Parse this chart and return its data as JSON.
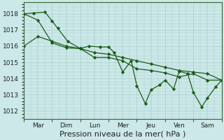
{
  "background_color": "#cce8e8",
  "grid_color": "#aacccc",
  "line_color": "#1a5c1a",
  "marker_color": "#1a5c1a",
  "xlabel": "Pression niveau de la mer( hPa )",
  "ylim": [
    1011.5,
    1018.7
  ],
  "yticks": [
    1012,
    1013,
    1014,
    1015,
    1016,
    1017,
    1018
  ],
  "days": [
    "Mar",
    "Dim",
    "Lun",
    "Mer",
    "Jeu",
    "Ven",
    "Sam"
  ],
  "day_tick_positions": [
    0.5,
    1.5,
    2.5,
    3.5,
    4.5,
    5.5,
    6.5
  ],
  "day_sep_positions": [
    0,
    1,
    2,
    3,
    4,
    5,
    6,
    7
  ],
  "series1_x": [
    0.0,
    0.5,
    1.0,
    1.5,
    2.0,
    2.5,
    3.0,
    3.5,
    4.0,
    4.5,
    5.0,
    5.5,
    6.0,
    6.5,
    7.0
  ],
  "series1_y": [
    1018.0,
    1017.6,
    1016.2,
    1015.9,
    1015.85,
    1015.6,
    1015.5,
    1015.3,
    1015.1,
    1014.9,
    1014.7,
    1014.5,
    1014.4,
    1014.3,
    1013.9
  ],
  "series2_x": [
    0.0,
    0.35,
    0.75,
    1.0,
    1.2,
    1.55,
    2.0,
    2.3,
    2.7,
    3.0,
    3.2,
    3.5,
    3.8,
    4.0,
    4.3,
    4.5,
    4.8,
    5.0,
    5.3,
    5.5,
    5.8,
    6.0,
    6.3,
    6.5,
    6.8,
    7.0
  ],
  "series2_y": [
    1018.0,
    1018.05,
    1018.1,
    1017.55,
    1017.1,
    1016.3,
    1015.85,
    1016.0,
    1015.95,
    1015.95,
    1015.6,
    1014.4,
    1015.1,
    1013.55,
    1012.45,
    1013.3,
    1013.6,
    1013.9,
    1013.35,
    1014.45,
    1014.3,
    1013.15,
    1012.25,
    1012.8,
    1013.5,
    1013.9
  ],
  "series3_x": [
    0.0,
    0.5,
    1.0,
    1.5,
    2.0,
    2.5,
    3.0,
    3.5,
    4.0,
    4.5,
    5.0,
    5.5,
    6.0,
    6.5,
    7.0
  ],
  "series3_y": [
    1016.0,
    1016.6,
    1016.3,
    1016.0,
    1015.85,
    1015.3,
    1015.3,
    1015.1,
    1014.6,
    1014.5,
    1014.35,
    1014.1,
    1014.3,
    1013.9,
    1013.9
  ],
  "xlabel_fontsize": 8,
  "tick_fontsize": 6.5
}
